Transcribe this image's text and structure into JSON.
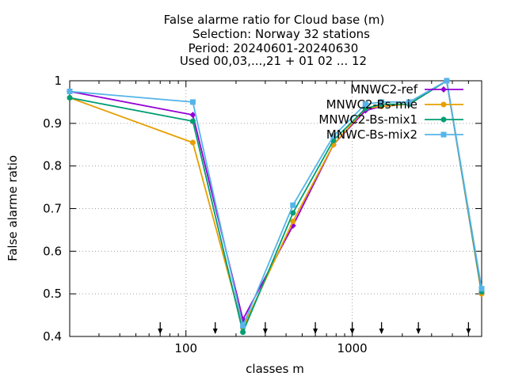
{
  "chart_data": {
    "type": "line",
    "title_lines": [
      "False alarme ratio  for Cloud base (m)",
      "Selection: Norway     32 stations",
      "Period: 20240601-20240630",
      "Used 00,03,...,21 + 01 02 ... 12"
    ],
    "xlabel": "classes m",
    "ylabel": "False alarme ratio",
    "x_scale": "log",
    "xlim": [
      20,
      6000
    ],
    "ylim": [
      0.4,
      1.0
    ],
    "x_ticks": [
      100,
      1000
    ],
    "x_tick_labels": [
      "100",
      "1000"
    ],
    "y_ticks": [
      0.4,
      0.5,
      0.6,
      0.7,
      0.8,
      0.9,
      1.0
    ],
    "y_tick_labels": [
      "0.4",
      "0.5",
      "0.6",
      "0.7",
      "0.8",
      "0.9",
      "1"
    ],
    "grid": true,
    "legend_position": "top-right",
    "x": [
      20,
      110,
      220,
      440,
      770,
      1200,
      1500,
      2200,
      3700,
      6000
    ],
    "series": [
      {
        "name": "MNWC2-ref",
        "color": "#9400d3",
        "marker": "diamond",
        "values": [
          0.975,
          0.92,
          0.44,
          0.66,
          0.85,
          0.93,
          0.94,
          0.945,
          1.0,
          0.5
        ]
      },
      {
        "name": "MNWC2-Bs-mie",
        "color": "#e69f00",
        "marker": "circle",
        "values": [
          0.96,
          0.855,
          0.42,
          0.67,
          0.85,
          0.935,
          0.94,
          0.945,
          1.0,
          0.5
        ]
      },
      {
        "name": "MNWC2-Bs-mix1",
        "color": "#009e73",
        "marker": "circle",
        "values": [
          0.96,
          0.905,
          0.41,
          0.69,
          0.86,
          0.935,
          0.945,
          0.945,
          1.0,
          0.505
        ]
      },
      {
        "name": "MNWC-Bs-mix2",
        "color": "#56b4e9",
        "marker": "square",
        "values": [
          0.975,
          0.95,
          0.425,
          0.708,
          0.87,
          0.945,
          0.95,
          0.95,
          1.0,
          0.512
        ]
      }
    ],
    "sample_arrows_x": [
      70,
      150,
      300,
      600,
      1000,
      1500,
      2500,
      5000
    ]
  }
}
